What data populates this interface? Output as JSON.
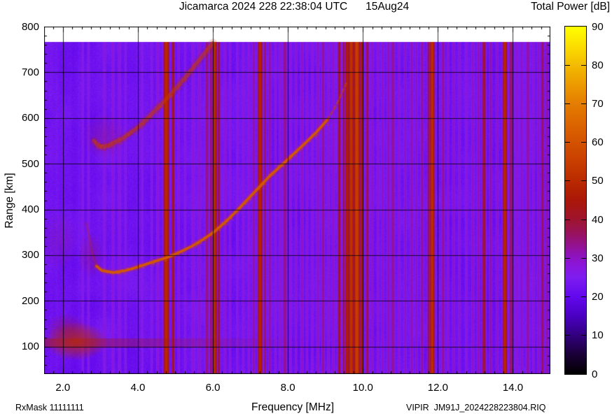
{
  "title": "Jicamarca 2024 228 22:38:04 UTC      15Aug24",
  "footer": {
    "left": "RxMask 11111111",
    "right": "VIPIR  JM91J_2024228223804.RIQ"
  },
  "colorbar": {
    "title": "Total Power [dB]",
    "min": 0,
    "max": 90,
    "tick_step": 10,
    "labels": [
      "0",
      "10",
      "20",
      "30",
      "40",
      "50",
      "60",
      "70",
      "80",
      "90"
    ],
    "palette": [
      [
        0,
        "#000000"
      ],
      [
        5,
        "#1a0036"
      ],
      [
        10,
        "#32007e"
      ],
      [
        15,
        "#4a00c2"
      ],
      [
        20,
        "#6208ee"
      ],
      [
        25,
        "#7e1df0"
      ],
      [
        28,
        "#8a16dd"
      ],
      [
        31,
        "#8f12b8"
      ],
      [
        34,
        "#941284"
      ],
      [
        37,
        "#991355"
      ],
      [
        40,
        "#9e142f"
      ],
      [
        45,
        "#ab1708"
      ],
      [
        50,
        "#ba2a00"
      ],
      [
        55,
        "#c83e00"
      ],
      [
        60,
        "#d35200"
      ],
      [
        65,
        "#dc6600"
      ],
      [
        70,
        "#e47d00"
      ],
      [
        75,
        "#ec9a00"
      ],
      [
        80,
        "#f3bb00"
      ],
      [
        85,
        "#fbde00"
      ],
      [
        90,
        "#ffff00"
      ]
    ]
  },
  "axes": {
    "x": {
      "label": "Frequency [MHz]",
      "min": 1.5,
      "max": 15.0,
      "major_ticks": [
        2,
        4,
        6,
        8,
        10,
        12,
        14
      ],
      "tick_labels": [
        "2.0",
        "4.0",
        "6.0",
        "8.0",
        "10.0",
        "12.0",
        "14.0"
      ],
      "minor_step": 0.25
    },
    "y": {
      "label": "Range [km]",
      "min": 40,
      "max": 800,
      "major_ticks": [
        100,
        200,
        300,
        400,
        500,
        600,
        700,
        800
      ],
      "tick_labels": [
        "100",
        "200",
        "300",
        "400",
        "500",
        "600",
        "700",
        "800"
      ],
      "minor_step": 20
    }
  },
  "chart_data": {
    "type": "heatmap",
    "title": "Jicamarca ionogram, total power in dB vs frequency and range",
    "f_range": [
      1.5,
      15.0
    ],
    "range_km": [
      40,
      800
    ],
    "data_top_km": 766,
    "background_db": 23.2,
    "grid": true,
    "traces": [
      {
        "name": "f-layer-echo",
        "power_db": 62,
        "points": [
          [
            2.62,
            370
          ],
          [
            2.7,
            342
          ],
          [
            2.8,
            300
          ],
          [
            2.9,
            276
          ],
          [
            3.05,
            266
          ],
          [
            3.35,
            262
          ],
          [
            3.65,
            266
          ],
          [
            3.95,
            273
          ],
          [
            4.25,
            281
          ],
          [
            4.55,
            289
          ],
          [
            4.85,
            297
          ],
          [
            5.15,
            308
          ],
          [
            5.45,
            320
          ],
          [
            5.75,
            335
          ],
          [
            6.05,
            352
          ],
          [
            6.35,
            374
          ],
          [
            6.65,
            398
          ],
          [
            6.95,
            424
          ],
          [
            7.25,
            450
          ],
          [
            7.55,
            476
          ],
          [
            7.85,
            498
          ],
          [
            8.15,
            521
          ],
          [
            8.45,
            544
          ],
          [
            8.75,
            568
          ],
          [
            9.05,
            596
          ],
          [
            9.25,
            622
          ],
          [
            9.42,
            650
          ],
          [
            9.58,
            680
          ]
        ]
      },
      {
        "name": "second-hop-echo",
        "power_db": 54,
        "points": [
          [
            2.84,
            550
          ],
          [
            2.95,
            538
          ],
          [
            3.1,
            537
          ],
          [
            3.3,
            543
          ],
          [
            3.55,
            553
          ],
          [
            3.8,
            567
          ],
          [
            4.05,
            583
          ],
          [
            4.3,
            603
          ],
          [
            4.55,
            624
          ],
          [
            4.8,
            645
          ],
          [
            5.05,
            668
          ],
          [
            5.3,
            692
          ],
          [
            5.55,
            718
          ],
          [
            5.8,
            744
          ],
          [
            6.0,
            764
          ]
        ]
      }
    ],
    "e_region": {
      "band_km": [
        98,
        118
      ],
      "band_f": [
        1.5,
        8.5
      ],
      "band_db": 40,
      "blobs": [
        {
          "f": 2.35,
          "km": 112,
          "rf": 0.85,
          "rkm": 42,
          "db": 50,
          "alpha": 0.8
        },
        {
          "f": 2.1,
          "km": 140,
          "rf": 0.55,
          "rkm": 34,
          "db": 42,
          "alpha": 0.35
        },
        {
          "f": 2.75,
          "km": 300,
          "rf": 0.35,
          "rkm": 50,
          "db": 40,
          "alpha": 0.25
        },
        {
          "f": 3.1,
          "km": 560,
          "rf": 0.6,
          "rkm": 50,
          "db": 36,
          "alpha": 0.3
        },
        {
          "f": 1.9,
          "km": 330,
          "rf": 0.5,
          "rkm": 65,
          "db": 38,
          "alpha": 0.16
        }
      ]
    },
    "rfi_stripes": {
      "format": [
        "freq_mhz",
        "width_mhz",
        "power_db"
      ],
      "rows": [
        [
          2.52,
          0.05,
          27
        ],
        [
          2.67,
          0.05,
          27
        ],
        [
          3.1,
          0.05,
          27.5
        ],
        [
          3.33,
          0.06,
          28
        ],
        [
          3.5,
          0.06,
          28
        ],
        [
          3.66,
          0.05,
          27
        ],
        [
          4.11,
          0.05,
          26.5
        ],
        [
          4.36,
          0.05,
          27
        ],
        [
          4.52,
          0.06,
          28.5
        ],
        [
          4.75,
          0.12,
          50
        ],
        [
          4.93,
          0.06,
          42
        ],
        [
          5.08,
          0.05,
          28
        ],
        [
          5.25,
          0.05,
          27
        ],
        [
          5.46,
          0.06,
          28
        ],
        [
          5.63,
          0.06,
          29
        ],
        [
          5.83,
          0.07,
          34
        ],
        [
          5.94,
          0.05,
          36
        ],
        [
          6.04,
          0.09,
          50
        ],
        [
          6.15,
          0.06,
          40
        ],
        [
          6.32,
          0.05,
          29
        ],
        [
          6.45,
          0.05,
          28
        ],
        [
          6.64,
          0.05,
          27
        ],
        [
          6.8,
          0.05,
          27.5
        ],
        [
          6.95,
          0.05,
          28
        ],
        [
          7.08,
          0.06,
          32
        ],
        [
          7.25,
          0.1,
          49
        ],
        [
          7.38,
          0.05,
          36
        ],
        [
          7.51,
          0.05,
          33
        ],
        [
          7.66,
          0.05,
          28
        ],
        [
          7.78,
          0.05,
          29
        ],
        [
          7.91,
          0.08,
          34
        ],
        [
          8.06,
          0.05,
          28
        ],
        [
          8.21,
          0.05,
          29
        ],
        [
          8.37,
          0.06,
          30
        ],
        [
          8.5,
          0.05,
          29
        ],
        [
          8.64,
          0.05,
          28
        ],
        [
          8.79,
          0.06,
          30
        ],
        [
          8.93,
          0.06,
          33
        ],
        [
          9.07,
          0.05,
          29
        ],
        [
          9.2,
          0.05,
          30
        ],
        [
          9.36,
          0.06,
          42
        ],
        [
          9.48,
          0.05,
          38
        ],
        [
          9.57,
          0.07,
          47
        ],
        [
          9.68,
          0.11,
          52
        ],
        [
          9.83,
          0.13,
          55
        ],
        [
          9.96,
          0.07,
          46
        ],
        [
          10.11,
          0.07,
          37
        ],
        [
          10.24,
          0.05,
          30
        ],
        [
          10.39,
          0.05,
          29
        ],
        [
          10.52,
          0.05,
          30
        ],
        [
          10.67,
          0.06,
          31
        ],
        [
          10.79,
          0.08,
          33
        ],
        [
          10.95,
          0.05,
          29
        ],
        [
          11.12,
          0.05,
          30
        ],
        [
          11.29,
          0.06,
          31
        ],
        [
          11.42,
          0.05,
          30
        ],
        [
          11.57,
          0.06,
          33
        ],
        [
          11.74,
          0.05,
          38
        ],
        [
          11.84,
          0.1,
          51
        ],
        [
          12.13,
          0.07,
          33
        ],
        [
          12.26,
          0.05,
          29
        ],
        [
          12.41,
          0.05,
          30
        ],
        [
          12.56,
          0.05,
          29
        ],
        [
          12.75,
          0.05,
          28
        ],
        [
          12.92,
          0.05,
          30
        ],
        [
          13.07,
          0.06,
          31
        ],
        [
          13.22,
          0.09,
          39
        ],
        [
          13.4,
          0.06,
          32
        ],
        [
          13.57,
          0.05,
          30
        ],
        [
          13.78,
          0.09,
          50
        ],
        [
          13.94,
          0.07,
          36
        ],
        [
          14.09,
          0.05,
          29
        ],
        [
          14.22,
          0.05,
          30
        ],
        [
          14.39,
          0.08,
          32
        ],
        [
          14.54,
          0.05,
          29
        ],
        [
          14.67,
          0.05,
          30
        ],
        [
          14.78,
          0.07,
          36
        ],
        [
          14.9,
          0.05,
          33
        ]
      ]
    }
  }
}
